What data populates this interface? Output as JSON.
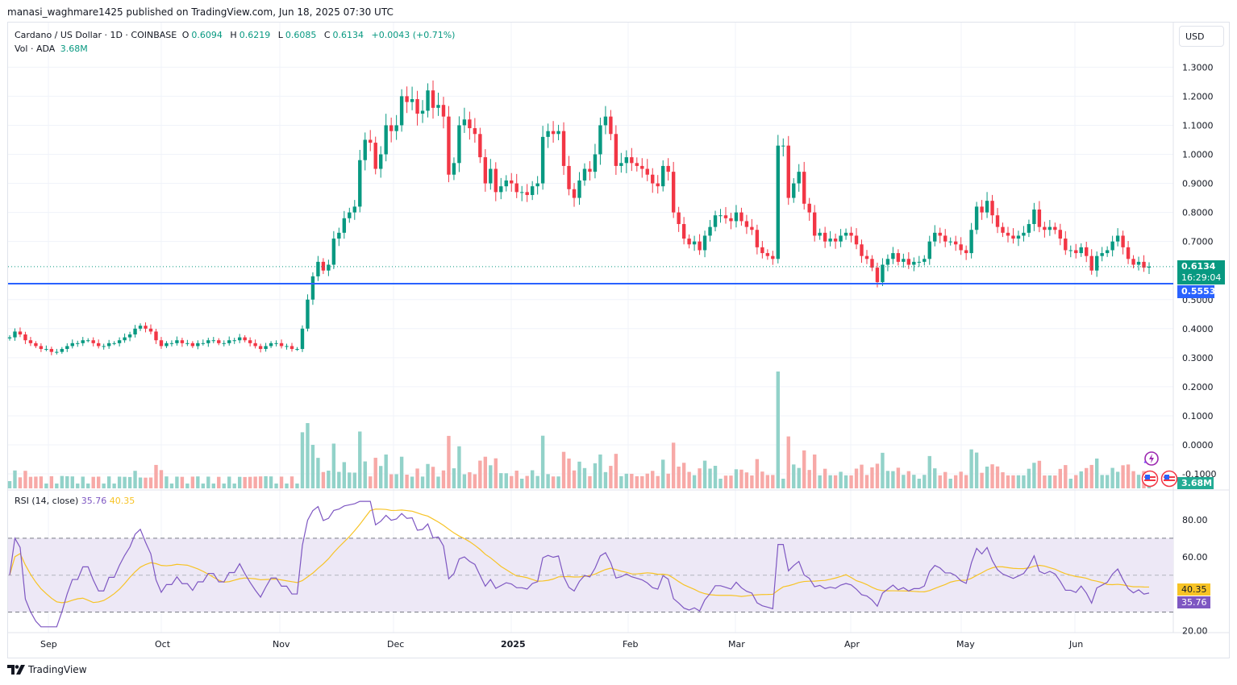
{
  "publish_line": "manasi_waghmare1425 published on TradingView.com, Jun 18, 2025 07:30 UTC",
  "header": {
    "symbol": "Cardano / US Dollar · 1D · COINBASE",
    "open_label": "O",
    "open": "0.6094",
    "high_label": "H",
    "high": "0.6219",
    "low_label": "L",
    "low": "0.6085",
    "close_label": "C",
    "close": "0.6134",
    "change": "+0.0043 (+0.71%)",
    "vol_label": "Vol · ADA",
    "vol_value": "3.68M"
  },
  "currency_button": "USD",
  "price_axis": {
    "ticks": [
      "1.3000",
      "1.2000",
      "1.1000",
      "1.0000",
      "0.9000",
      "0.8000",
      "0.7000",
      "0.5000",
      "0.4000",
      "0.3000",
      "0.2000",
      "0.1000",
      "0.0000",
      "-0.1000"
    ],
    "last_price_tag": "0.6134",
    "countdown": "16:29:04",
    "line_price_tag": "0.5553",
    "volume_tag": "3.68M"
  },
  "rsi": {
    "label": "RSI (14, close)",
    "value": "35.76",
    "ma_value": "40.35",
    "ticks": [
      "80.00",
      "60.00",
      "20.00"
    ],
    "upper_band": 70,
    "lower_band": 30,
    "middle": 50
  },
  "time_axis": [
    "Sep",
    "Oct",
    "Nov",
    "Dec",
    "2025",
    "Feb",
    "Mar",
    "Apr",
    "May",
    "Jun"
  ],
  "footer_brand": "TradingView",
  "colors": {
    "up": "#089981",
    "down": "#f23645",
    "vol_up": "#92d2c9",
    "vol_down": "#f7a9a7",
    "rsi_line": "#7e57c2",
    "rsi_ma": "#f7c325",
    "hline": "#2962ff",
    "rsi_band": "#ede8f6"
  },
  "chart_data": {
    "type": "candlestick",
    "title": "Cardano / US Dollar · 1D · COINBASE",
    "ylabel": "USD",
    "ylim": [
      0.25,
      1.35
    ],
    "horizontal_line": 0.5553,
    "last_price": 0.6134,
    "x_month_labels": [
      "Sep",
      "Oct",
      "Nov",
      "Dec",
      "2025",
      "Feb",
      "Mar",
      "Apr",
      "May",
      "Jun"
    ],
    "closes_approx": [
      0.37,
      0.39,
      0.38,
      0.36,
      0.35,
      0.34,
      0.33,
      0.33,
      0.32,
      0.32,
      0.33,
      0.34,
      0.35,
      0.35,
      0.36,
      0.36,
      0.35,
      0.34,
      0.34,
      0.35,
      0.35,
      0.36,
      0.37,
      0.38,
      0.4,
      0.41,
      0.4,
      0.39,
      0.36,
      0.34,
      0.35,
      0.35,
      0.36,
      0.35,
      0.35,
      0.34,
      0.35,
      0.35,
      0.36,
      0.36,
      0.35,
      0.35,
      0.36,
      0.36,
      0.37,
      0.36,
      0.35,
      0.34,
      0.33,
      0.34,
      0.35,
      0.35,
      0.34,
      0.34,
      0.33,
      0.33,
      0.4,
      0.5,
      0.58,
      0.63,
      0.6,
      0.62,
      0.71,
      0.73,
      0.78,
      0.8,
      0.82,
      0.98,
      1.05,
      1.04,
      0.95,
      1.0,
      1.1,
      1.08,
      1.1,
      1.2,
      1.18,
      1.19,
      1.14,
      1.15,
      1.22,
      1.16,
      1.17,
      1.13,
      0.93,
      0.97,
      1.1,
      1.12,
      1.09,
      1.07,
      0.99,
      0.9,
      0.95,
      0.87,
      0.89,
      0.91,
      0.9,
      0.87,
      0.87,
      0.86,
      0.89,
      0.9,
      1.06,
      1.08,
      1.07,
      1.08,
      0.96,
      0.88,
      0.85,
      0.91,
      0.95,
      0.94,
      1.0,
      1.1,
      1.13,
      1.07,
      0.96,
      0.97,
      0.99,
      0.97,
      0.96,
      0.95,
      0.93,
      0.9,
      0.89,
      0.96,
      0.94,
      0.8,
      0.76,
      0.71,
      0.69,
      0.7,
      0.67,
      0.72,
      0.75,
      0.79,
      0.79,
      0.78,
      0.77,
      0.8,
      0.77,
      0.75,
      0.74,
      0.68,
      0.66,
      0.65,
      0.64,
      1.03,
      1.03,
      0.85,
      0.9,
      0.94,
      0.83,
      0.8,
      0.72,
      0.73,
      0.7,
      0.71,
      0.7,
      0.72,
      0.73,
      0.72,
      0.69,
      0.65,
      0.64,
      0.61,
      0.56,
      0.62,
      0.64,
      0.66,
      0.63,
      0.64,
      0.62,
      0.63,
      0.63,
      0.64,
      0.7,
      0.73,
      0.72,
      0.7,
      0.7,
      0.69,
      0.67,
      0.66,
      0.74,
      0.82,
      0.8,
      0.84,
      0.79,
      0.75,
      0.73,
      0.72,
      0.71,
      0.72,
      0.73,
      0.76,
      0.81,
      0.75,
      0.74,
      0.75,
      0.74,
      0.71,
      0.67,
      0.67,
      0.66,
      0.68,
      0.65,
      0.6,
      0.65,
      0.66,
      0.67,
      0.7,
      0.72,
      0.68,
      0.64,
      0.62,
      0.63,
      0.61,
      0.6134
    ],
    "volume_scale_note": "relative heights, millions",
    "rsi_range": [
      20,
      90
    ]
  }
}
